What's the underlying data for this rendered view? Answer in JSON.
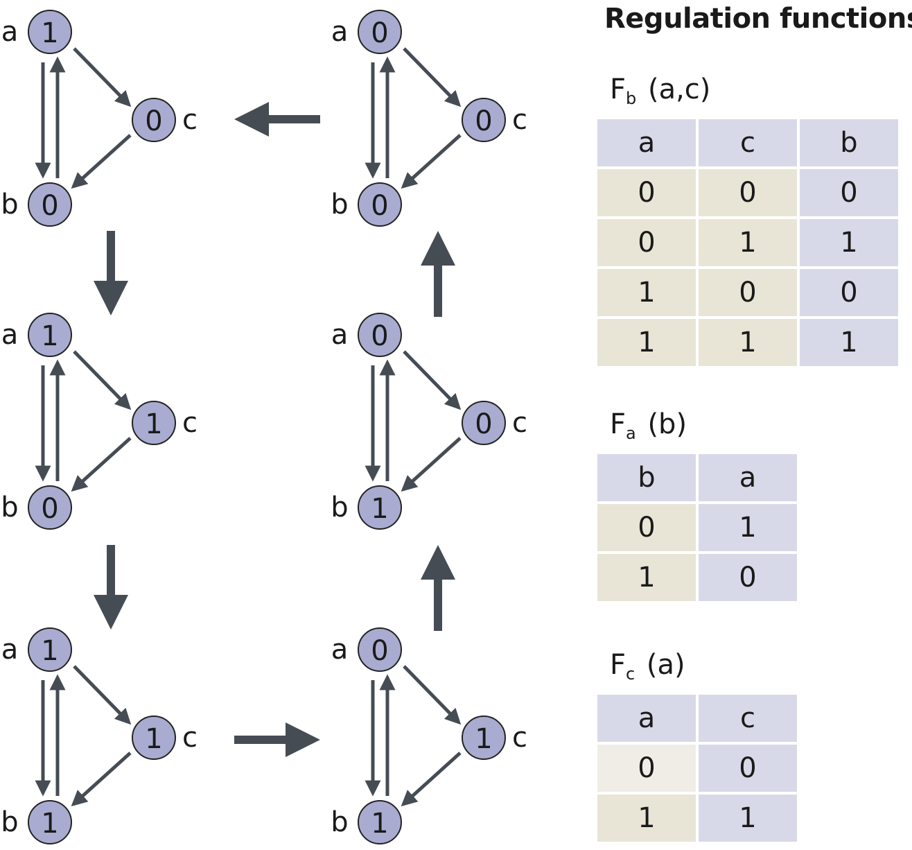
{
  "title": "Regulation functions",
  "network_states": [
    {
      "id": "s1",
      "a": "1",
      "b": "0",
      "c": "0"
    },
    {
      "id": "s2",
      "a": "1",
      "b": "0",
      "c": "1"
    },
    {
      "id": "s3",
      "a": "1",
      "b": "1",
      "c": "1"
    },
    {
      "id": "s4",
      "a": "0",
      "b": "1",
      "c": "1"
    },
    {
      "id": "s5",
      "a": "0",
      "b": "1",
      "c": "0"
    },
    {
      "id": "s6",
      "a": "0",
      "b": "0",
      "c": "0"
    }
  ],
  "node_names": {
    "a": "a",
    "b": "b",
    "c": "c"
  },
  "transitions": [
    {
      "from": "s1",
      "to": "s2"
    },
    {
      "from": "s2",
      "to": "s3"
    },
    {
      "from": "s3",
      "to": "s4"
    },
    {
      "from": "s4",
      "to": "s5"
    },
    {
      "from": "s5",
      "to": "s6"
    },
    {
      "from": "s6",
      "to": "s1"
    }
  ],
  "functions": {
    "fb": {
      "name": "F",
      "sub": "b",
      "args": " (a,c)",
      "headers": [
        "a",
        "c",
        "b"
      ],
      "rows": [
        [
          "0",
          "0",
          "0"
        ],
        [
          "0",
          "1",
          "1"
        ],
        [
          "1",
          "0",
          "0"
        ],
        [
          "1",
          "1",
          "1"
        ]
      ]
    },
    "fa": {
      "name": "F",
      "sub": "a",
      "args": " (b)",
      "headers": [
        "b",
        "a"
      ],
      "rows": [
        [
          "0",
          "1"
        ],
        [
          "1",
          "0"
        ]
      ]
    },
    "fc": {
      "name": "F",
      "sub": "c",
      "args": " (a)",
      "headers": [
        "a",
        "c"
      ],
      "rows": [
        [
          "0",
          "0"
        ],
        [
          "1",
          "1"
        ]
      ]
    }
  },
  "colors": {
    "node_fill": "#a9acd0",
    "arrow": "#454c54",
    "header_cell": "#d8d9e8",
    "input_cell": "#e8e5d6",
    "output_cell": "#d8d9e8"
  }
}
